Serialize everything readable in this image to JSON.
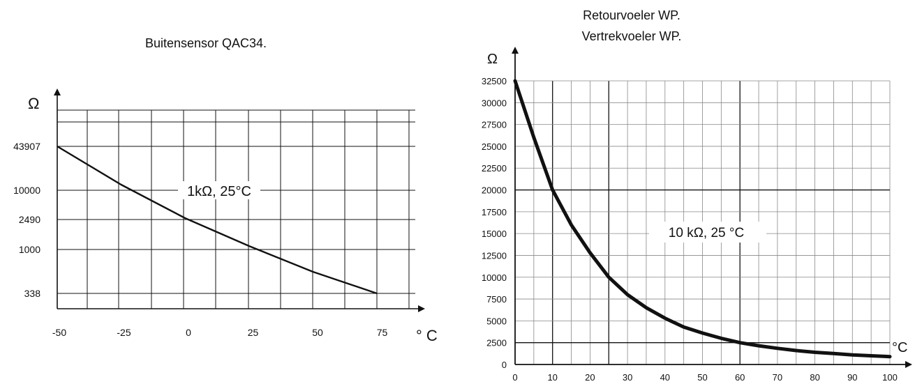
{
  "chart_data": [
    {
      "type": "line",
      "title": "Buitensensor QAC34.",
      "ylabel": "Ω",
      "xlabel": "° C",
      "x_ticks": [
        "-50",
        "-25",
        "0",
        "25",
        "50",
        "75"
      ],
      "y_ticks": [
        "43907",
        "10000",
        "2490",
        "1000",
        "338"
      ],
      "annotation": "1kΩ, 25°C",
      "series": [
        {
          "x": [
            -50,
            -25,
            0,
            25,
            50,
            75
          ],
          "y": [
            43907,
            10000,
            2490,
            1000,
            600,
            338
          ]
        }
      ],
      "grid": true
    },
    {
      "type": "line",
      "title_lines": [
        "Retourvoeler WP.",
        "Vertrekvoeler WP."
      ],
      "ylabel": "Ω",
      "xlabel": "°C",
      "xlim": [
        0,
        100
      ],
      "ylim": [
        0,
        32500
      ],
      "x_ticks": [
        "0",
        "10",
        "20",
        "30",
        "40",
        "50",
        "60",
        "70",
        "80",
        "90",
        "100"
      ],
      "y_ticks": [
        "0",
        "2500",
        "5000",
        "7500",
        "10000",
        "12500",
        "15000",
        "17500",
        "20000",
        "22500",
        "25000",
        "27500",
        "30000",
        "32500"
      ],
      "annotation": "10 kΩ, 25 °C",
      "series": [
        {
          "x": [
            0,
            5,
            10,
            15,
            20,
            25,
            30,
            35,
            40,
            45,
            50,
            55,
            60,
            65,
            70,
            75,
            80,
            85,
            90,
            95,
            100
          ],
          "y": [
            32500,
            26000,
            20000,
            16000,
            12800,
            10000,
            8000,
            6500,
            5300,
            4300,
            3600,
            3000,
            2500,
            2150,
            1850,
            1600,
            1400,
            1250,
            1100,
            1000,
            900
          ]
        }
      ],
      "grid": true
    }
  ]
}
